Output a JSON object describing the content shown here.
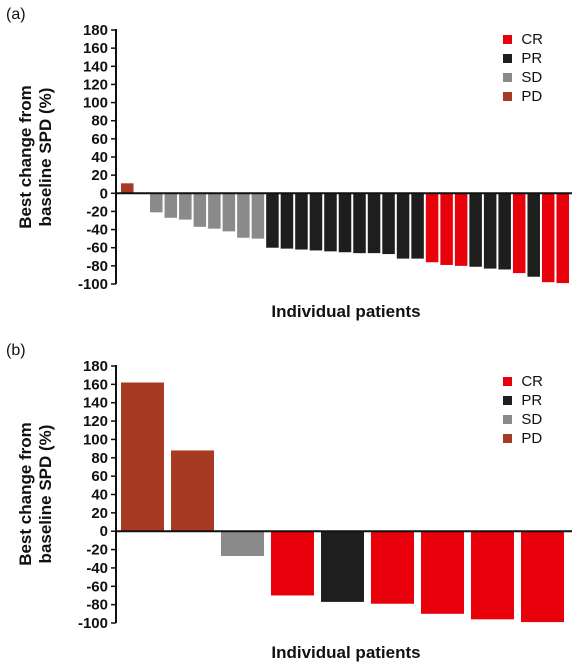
{
  "colors": {
    "CR": "#e8000b",
    "PR": "#1e1e1e",
    "SD": "#8a8a8a",
    "PD": "#a63a22"
  },
  "chart_data": [
    {
      "type": "bar",
      "panel_label": "(a)",
      "xlabel": "Individual patients",
      "ylabel_lines": [
        "Best change from",
        "baseline SPD (%)"
      ],
      "ylim": [
        -100,
        180
      ],
      "yticks": [
        180,
        160,
        140,
        120,
        100,
        80,
        60,
        40,
        20,
        0,
        -20,
        -40,
        -60,
        -80,
        -100
      ],
      "legend": [
        {
          "key": "CR",
          "label": "CR"
        },
        {
          "key": "PR",
          "label": "PR"
        },
        {
          "key": "SD",
          "label": "SD"
        },
        {
          "key": "PD",
          "label": "PD"
        }
      ],
      "bars": [
        {
          "value": 11,
          "response": "PD"
        },
        {
          "value": 0,
          "response": "SD"
        },
        {
          "value": -21,
          "response": "SD"
        },
        {
          "value": -27,
          "response": "SD"
        },
        {
          "value": -29,
          "response": "SD"
        },
        {
          "value": -37,
          "response": "SD"
        },
        {
          "value": -39,
          "response": "SD"
        },
        {
          "value": -42,
          "response": "SD"
        },
        {
          "value": -49,
          "response": "SD"
        },
        {
          "value": -50,
          "response": "SD"
        },
        {
          "value": -60,
          "response": "PR"
        },
        {
          "value": -61,
          "response": "PR"
        },
        {
          "value": -62,
          "response": "PR"
        },
        {
          "value": -63,
          "response": "PR"
        },
        {
          "value": -64,
          "response": "PR"
        },
        {
          "value": -65,
          "response": "PR"
        },
        {
          "value": -66,
          "response": "PR"
        },
        {
          "value": -66,
          "response": "PR"
        },
        {
          "value": -67,
          "response": "PR"
        },
        {
          "value": -72,
          "response": "PR"
        },
        {
          "value": -72,
          "response": "PR"
        },
        {
          "value": -76,
          "response": "CR"
        },
        {
          "value": -79,
          "response": "CR"
        },
        {
          "value": -80,
          "response": "CR"
        },
        {
          "value": -81,
          "response": "PR"
        },
        {
          "value": -83,
          "response": "PR"
        },
        {
          "value": -84,
          "response": "PR"
        },
        {
          "value": -88,
          "response": "CR"
        },
        {
          "value": -92,
          "response": "PR"
        },
        {
          "value": -98,
          "response": "CR"
        },
        {
          "value": -99,
          "response": "CR"
        }
      ]
    },
    {
      "type": "bar",
      "panel_label": "(b)",
      "xlabel": "Individual patients",
      "ylabel_lines": [
        "Best change from",
        "baseline SPD (%)"
      ],
      "ylim": [
        -100,
        180
      ],
      "yticks": [
        180,
        160,
        140,
        120,
        100,
        80,
        60,
        40,
        20,
        0,
        -20,
        -40,
        -60,
        -80,
        -100
      ],
      "legend": [
        {
          "key": "CR",
          "label": "CR"
        },
        {
          "key": "PR",
          "label": "PR"
        },
        {
          "key": "SD",
          "label": "SD"
        },
        {
          "key": "PD",
          "label": "PD"
        }
      ],
      "bars": [
        {
          "value": 162,
          "response": "PD"
        },
        {
          "value": 88,
          "response": "PD"
        },
        {
          "value": -27,
          "response": "SD"
        },
        {
          "value": -70,
          "response": "CR"
        },
        {
          "value": -77,
          "response": "PR"
        },
        {
          "value": -79,
          "response": "CR"
        },
        {
          "value": -90,
          "response": "CR"
        },
        {
          "value": -96,
          "response": "CR"
        },
        {
          "value": -99,
          "response": "CR"
        }
      ]
    }
  ]
}
